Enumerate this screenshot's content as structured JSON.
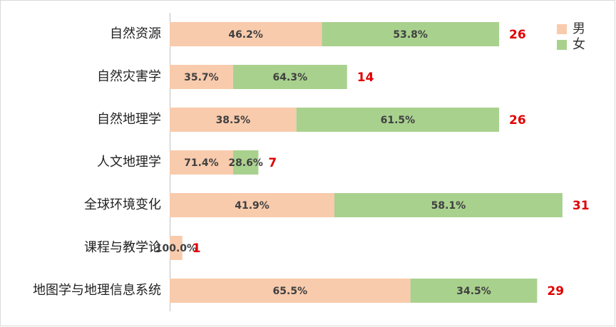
{
  "chart_data": {
    "type": "stacked-bar-horizontal",
    "categories": [
      "自然资源",
      "自然灾害学",
      "自然地理学",
      "人文地理学",
      "全球环境变化",
      "课程与教学论",
      "地图学与地理信息系统"
    ],
    "series": [
      {
        "name": "男",
        "color": "#f8cbad",
        "values": [
          12,
          5,
          10,
          5,
          13,
          1,
          19
        ],
        "value_labels": [
          "46.2%",
          "35.7%",
          "38.5%",
          "71.4%",
          "41.9%",
          "100.0%",
          "65.5%"
        ]
      },
      {
        "name": "女",
        "color": "#a9d18e",
        "values": [
          14,
          9,
          16,
          2,
          18,
          0,
          10
        ],
        "value_labels": [
          "53.8%",
          "64.3%",
          "61.5%",
          "28.6%",
          "58.1%",
          null,
          "34.5%"
        ]
      }
    ],
    "totals": [
      26,
      14,
      26,
      7,
      31,
      1,
      29
    ],
    "xlim": [
      0,
      35
    ],
    "legend": "top-right"
  }
}
